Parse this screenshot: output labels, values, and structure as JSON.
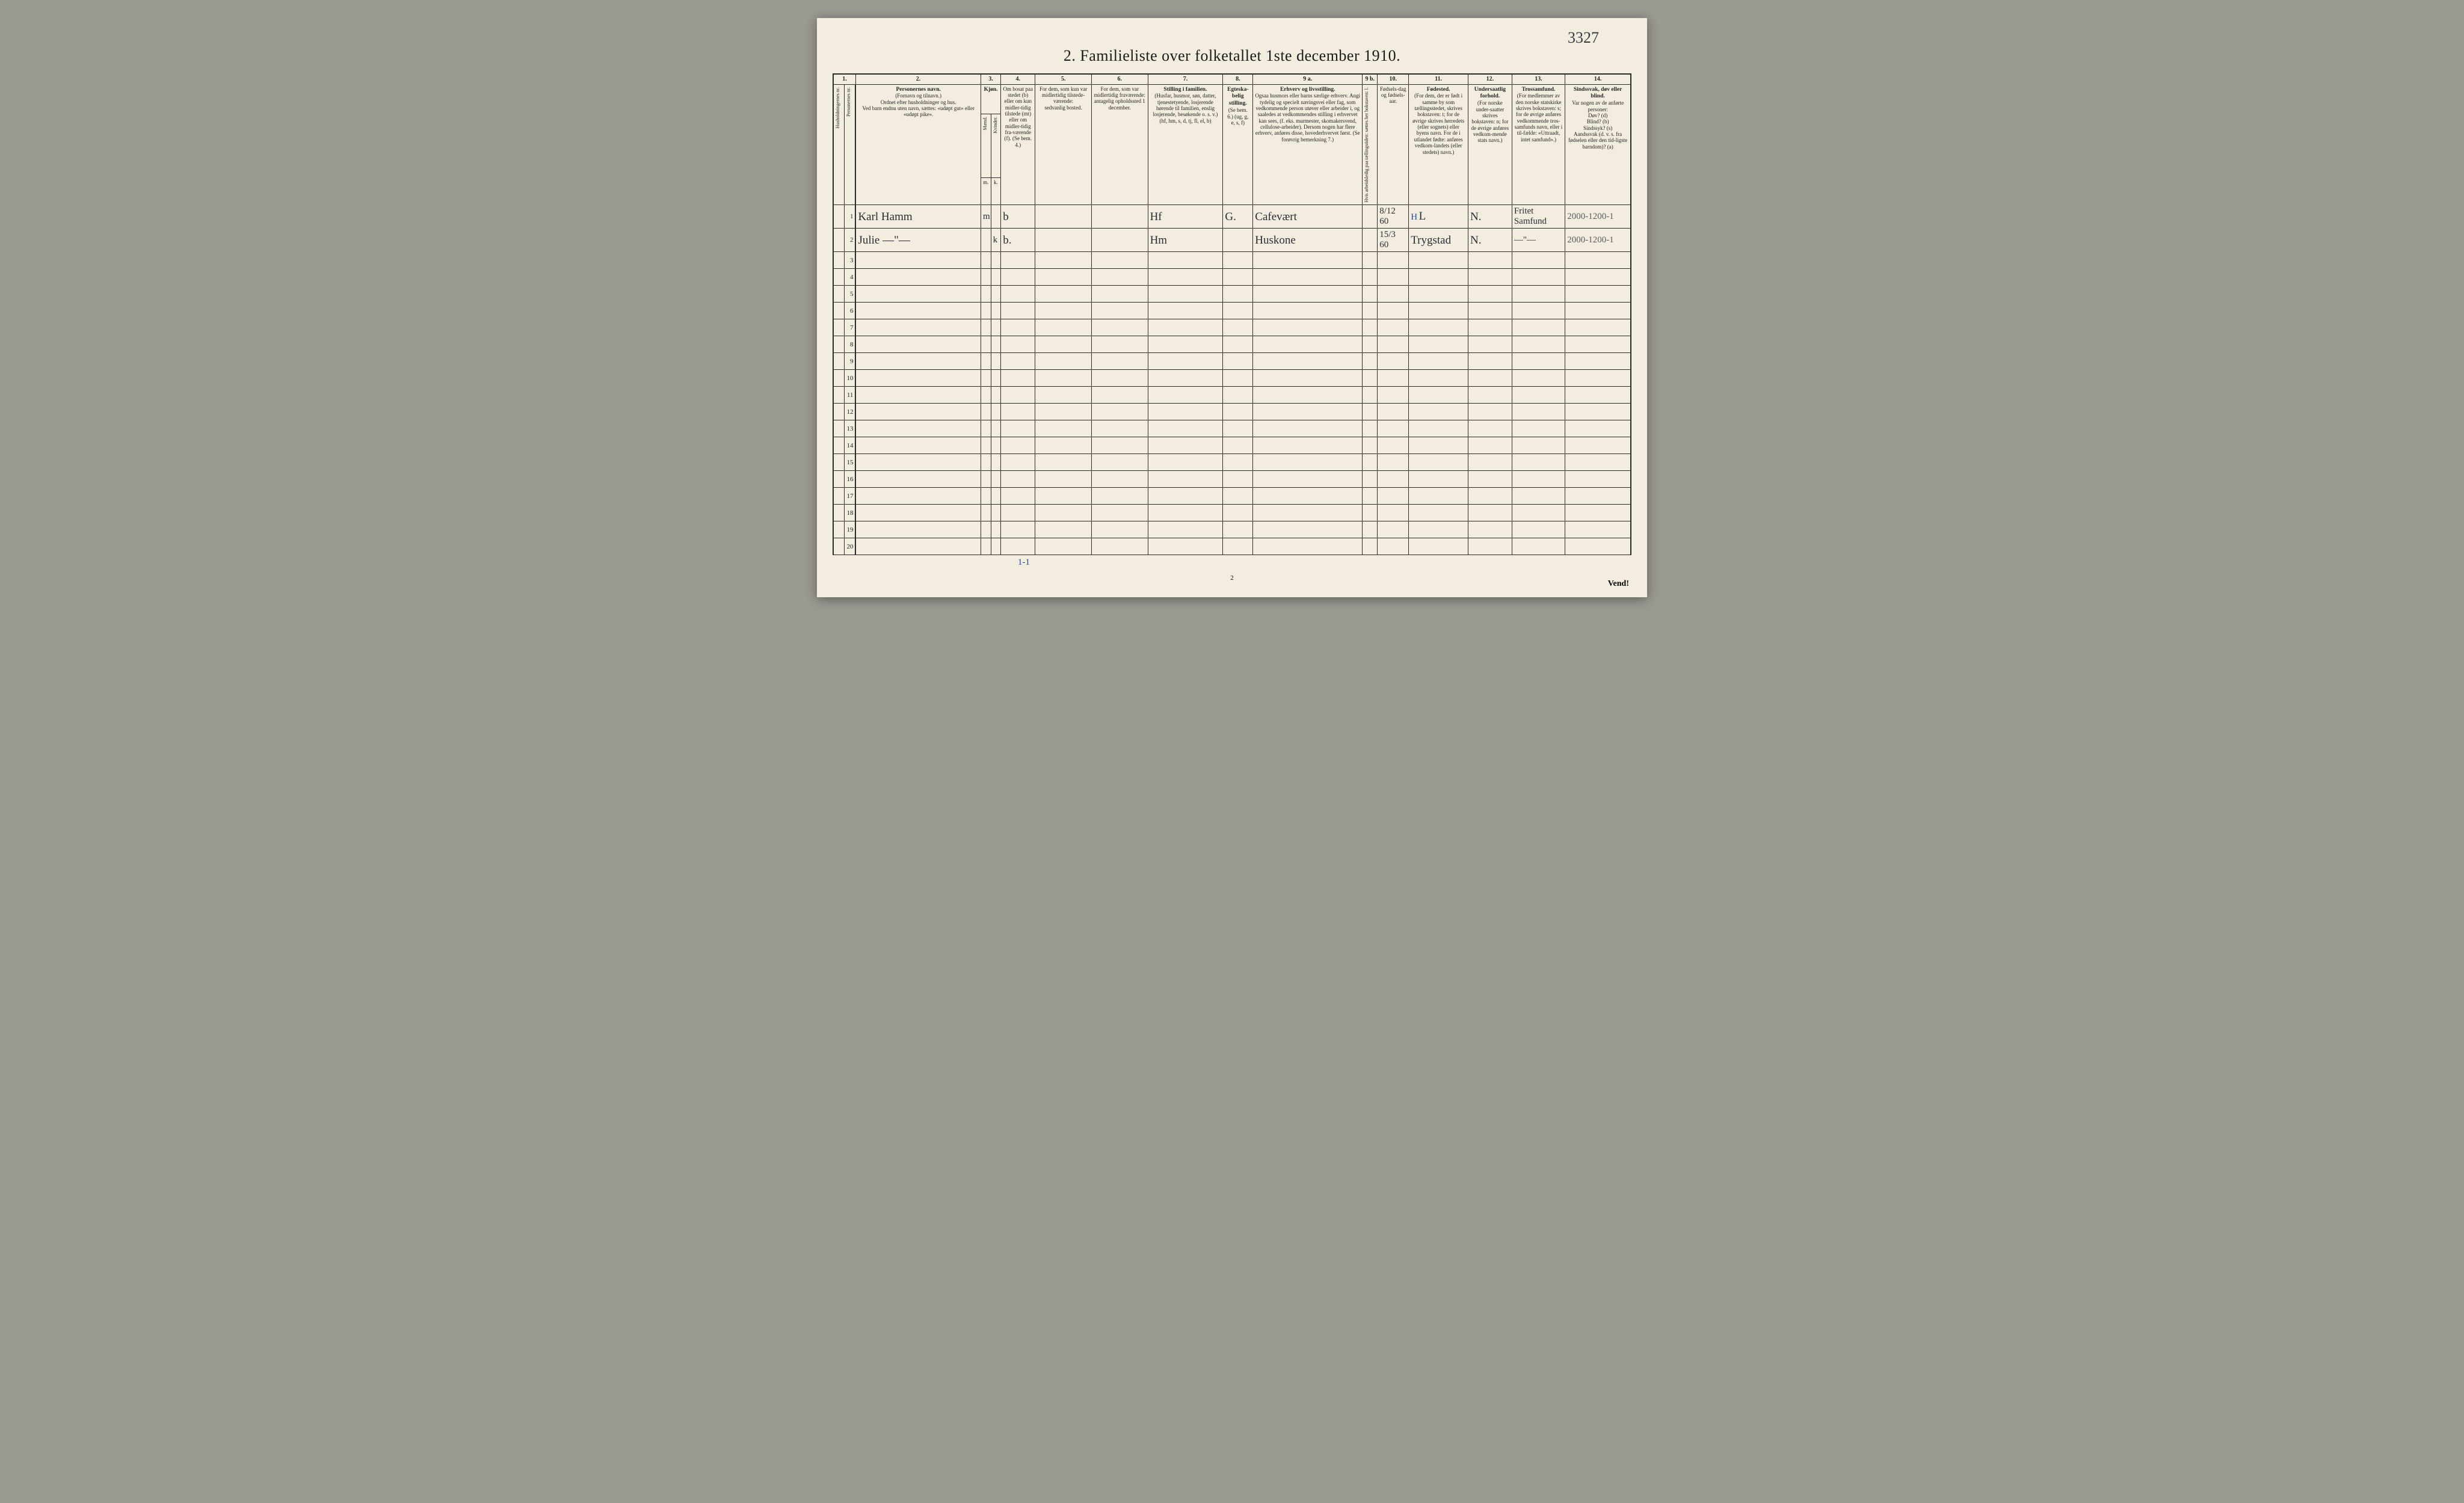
{
  "handwritten_pageno": "3327",
  "title": "2.  Familieliste over folketallet 1ste december 1910.",
  "col_numbers": [
    "1.",
    "",
    "2.",
    "3.",
    "",
    "4.",
    "5.",
    "6.",
    "7.",
    "8.",
    "9 a.",
    "9 b.",
    "10.",
    "11.",
    "12.",
    "13.",
    "14."
  ],
  "headers": {
    "c1a": "Husholdningernes nr.",
    "c1b": "Personernes nr.",
    "c2_title": "Personernes navn.",
    "c2_sub": "(Fornavn og tilnavn.)\nOrdnet efter husholdninger og hus.\nVed barn endnu uten navn, sættes: «udøpt gut» eller «udøpt pike».",
    "c3_title": "Kjøn.",
    "c3_sub": "Mænd. | Kvinder.",
    "c3_mk": "m. | k.",
    "c4": "Om bosat paa stedet (b) eller om kun midler-tidig tilstede (mt) eller om midler-tidig fra-værende (f). (Se bem. 4.)",
    "c5": "For dem, som kun var midlertidig tilstede-værende:\nsedvanlig bosted.",
    "c6": "For dem, som var midlertidig fraværende:\nantagelig opholdssted 1 december.",
    "c7_title": "Stilling i familien.",
    "c7_sub": "(Husfar, husmor, søn, datter, tjenestetyende, losjerende hørende til familien, enslig losjerende, besøkende o. s. v.)\n(hf, hm, s, d, tj, fl, el, b)",
    "c8_title": "Egteska-belig stilling.",
    "c8_sub": "(Se bem. 6.)\n(ug, g, e, s, f)",
    "c9a_title": "Erhverv og livsstilling.",
    "c9a_sub": "Ogsaa husmors eller barns særlige erhverv. Angi tydelig og specielt næringsvei eller fag, som vedkommende person utøver eller arbeider i, og saaledes at vedkommendes stilling i erhvervet kan sees, (f. eks. murmester, skomakersvend, cellulose-arbeider). Dersom nogen har flere erhverv, anføres disse, hovederhvervet først. (Se forøvrig bemerkning 7.)",
    "c9b": "Hvis arbeidsledig paa tællingstiden: sættes her bokstaven: l.",
    "c10": "Fødsels-dag og fødsels-aar.",
    "c11_title": "Fødested.",
    "c11_sub": "(For dem, der er født i samme by som tællingsstedet, skrives bokstaven: t; for de øvrige skrives herredets (eller sognets) eller byens navn. For de i utlandet fødte: anføres vedkom-landets (eller stedets) navn.)",
    "c12_title": "Undersaatlig forhold.",
    "c12_sub": "(For norske under-saatter skrives bokstaven: n; for de øvrige anføres vedkom-mende stats navn.)",
    "c13_title": "Trossamfund.",
    "c13_sub": "(For medlemmer av den norske statskirke skrives bokstaven: s; for de øvrige anføres vedkommende tros-samfunds navn, eller i til-fælde: «Uttraadt, intet samfund».)",
    "c14_title": "Sindssvak, døv eller blind.",
    "c14_sub": "Var nogen av de anførte personer:\nDøv? (d)\nBlind? (b)\nSindssyk? (s)\nAandssvak (d. v. s. fra fødselen eller den tid-ligste barndom)? (a)"
  },
  "rows": [
    {
      "n": "1",
      "name": "Karl Hamm",
      "mk": "m",
      "res": "b",
      "fam": "Hf",
      "marital": "G.",
      "occ": "Cafevært",
      "bdate": "8/12 60",
      "bloc_blue": "H",
      "bplace": "L",
      "nat": "N.",
      "rel": "Fritet Samfund",
      "c14": "2000-1200-1"
    },
    {
      "n": "2",
      "name": "Julie   —\"—",
      "mk": "k",
      "res": "b.",
      "fam": "Hm",
      "marital": "",
      "occ": "Huskone",
      "bdate": "15/3 60",
      "bloc_blue": "",
      "bplace": "Trygstad",
      "nat": "N.",
      "rel": "—\"—",
      "c14": "2000-1200-1"
    },
    {
      "n": "3"
    },
    {
      "n": "4"
    },
    {
      "n": "5"
    },
    {
      "n": "6"
    },
    {
      "n": "7"
    },
    {
      "n": "8"
    },
    {
      "n": "9"
    },
    {
      "n": "10"
    },
    {
      "n": "11"
    },
    {
      "n": "12"
    },
    {
      "n": "13"
    },
    {
      "n": "14"
    },
    {
      "n": "15"
    },
    {
      "n": "16"
    },
    {
      "n": "17"
    },
    {
      "n": "18"
    },
    {
      "n": "19"
    },
    {
      "n": "20"
    }
  ],
  "tally_below": "1-1",
  "footer_page": "2",
  "vend": "Vend!",
  "colors": {
    "paper": "#f3ede0",
    "ink": "#2a2a2a",
    "handwriting": "#2b2b35",
    "pencil_blue": "#1a4aa0",
    "mat": "#9a9a92"
  }
}
